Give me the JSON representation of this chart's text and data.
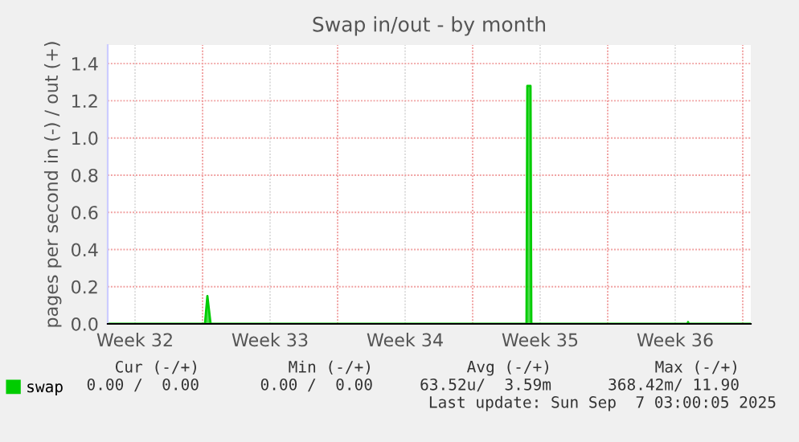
{
  "chart_data": {
    "type": "area",
    "title": "Swap in/out - by month",
    "ylabel": "pages per second in (-) / out (+)",
    "series": [
      {
        "name": "swap",
        "color": "#00cc00",
        "x": [
          "2025-08-06T02:00",
          "2025-08-11T03:00",
          "2025-08-11T06:00",
          "2025-08-11T10:00",
          "2025-08-27T19:00",
          "2025-08-27T20:00",
          "2025-08-28T00:00",
          "2025-08-28T01:00",
          "2025-09-05T03:00",
          "2025-09-05T04:00",
          "2025-09-05T05:00",
          "2025-09-08T10:00"
        ],
        "values": [
          0,
          0,
          0.15,
          0,
          0,
          1.28,
          1.28,
          0,
          0,
          0.01,
          0,
          0
        ]
      }
    ],
    "xlim": [
      "2025-08-06T02:00",
      "2025-09-08T10:00"
    ],
    "xticks": [
      {
        "value": "2025-08-07T12:00",
        "label": "Week 32"
      },
      {
        "value": "2025-08-11",
        "label": null
      },
      {
        "value": "2025-08-14T12:00",
        "label": "Week 33"
      },
      {
        "value": "2025-08-18",
        "label": null
      },
      {
        "value": "2025-08-21T12:00",
        "label": "Week 34"
      },
      {
        "value": "2025-08-25",
        "label": null
      },
      {
        "value": "2025-08-28T12:00",
        "label": "Week 35"
      },
      {
        "value": "2025-09-01",
        "label": null
      },
      {
        "value": "2025-09-04T12:00",
        "label": "Week 36"
      },
      {
        "value": "2025-09-08",
        "label": null
      }
    ],
    "ylim": [
      0,
      1.5
    ],
    "yticks": [
      {
        "value": 0,
        "label": "0.0"
      },
      {
        "value": 0.2,
        "label": "0.2"
      },
      {
        "value": 0.4,
        "label": "0.4"
      },
      {
        "value": 0.6,
        "label": "0.6"
      },
      {
        "value": 0.8,
        "label": "0.8"
      },
      {
        "value": 1.0,
        "label": "1.0"
      },
      {
        "value": 1.2,
        "label": "1.2"
      },
      {
        "value": 1.4,
        "label": "1.4"
      }
    ],
    "grid": true,
    "legend": "bottom left",
    "annotations": [
      "Cur (-/+)",
      "Min (-/+)",
      "Avg (-/+)",
      "Max (-/+)",
      "0.00 /  0.00",
      "0.00 /  0.00",
      "63.52u/  3.59m",
      "368.42m/ 11.90",
      "Last update: Sun Sep  7 03:00:05 2025"
    ]
  }
}
